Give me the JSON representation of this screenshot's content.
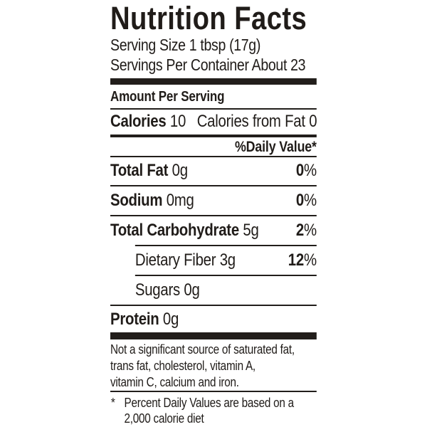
{
  "colors": {
    "ink": "#201c19",
    "background": "#ffffff"
  },
  "label": {
    "title": "Nutrition Facts",
    "serving_size_line": "Serving Size 1 tbsp (17g)",
    "servings_per_container_line": "Servings Per Container About 23",
    "amount_per_serving": "Amount Per Serving",
    "calories": {
      "label": "Calories",
      "value": "10",
      "from_fat_label": "Calories from Fat",
      "from_fat_value": "0"
    },
    "daily_value_header": "%Daily Value*",
    "rows": [
      {
        "label": "Total Fat",
        "amount": "0g",
        "dv": "0",
        "dv_sign": "%"
      },
      {
        "label": "Sodium",
        "amount": "0mg",
        "dv": "0",
        "dv_sign": "%"
      },
      {
        "label": "Total Carbohydrate",
        "amount": "5g",
        "dv": "2",
        "dv_sign": "%"
      },
      {
        "label": "Dietary Fiber",
        "amount": "3g",
        "dv": "12",
        "dv_sign": "%"
      },
      {
        "label": "Sugars",
        "amount": "0g",
        "dv": "",
        "dv_sign": ""
      },
      {
        "label": "Protein",
        "amount": "0g",
        "dv": "",
        "dv_sign": ""
      }
    ],
    "not_significant_lines": [
      "Not a significant source of saturated fat,",
      "trans fat, cholesterol, vitamin A,",
      "vitamin C, calcium and iron."
    ],
    "footnote": {
      "marker": "*",
      "lines": [
        "Percent Daily Values are based on a",
        "2,000 calorie diet"
      ]
    }
  }
}
